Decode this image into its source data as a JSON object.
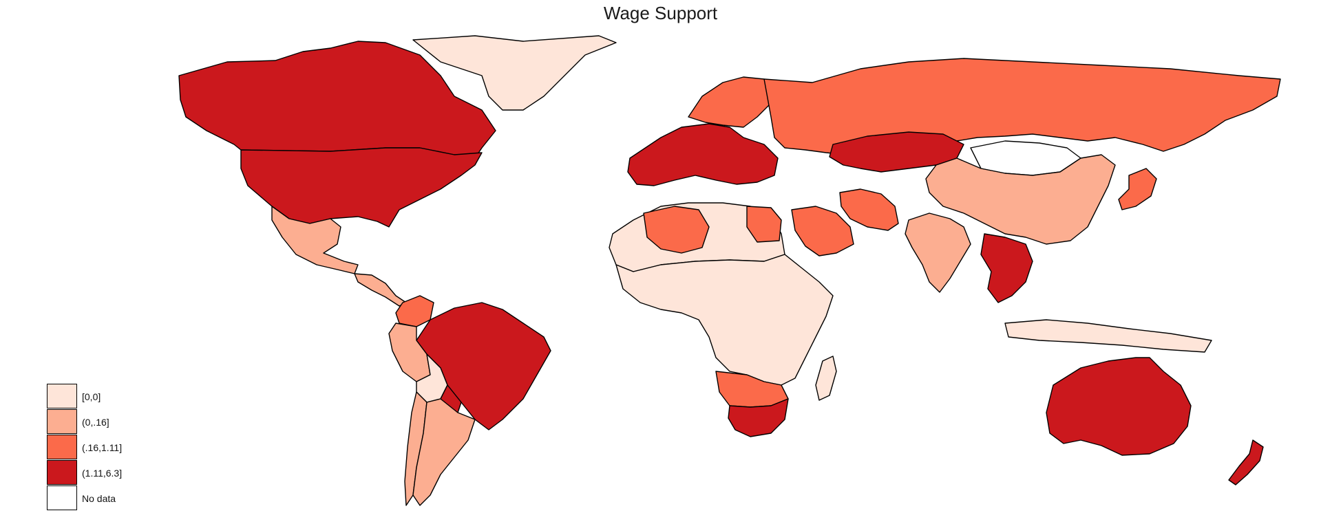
{
  "title": "Wage Support",
  "legend": {
    "items": [
      {
        "label": "[0,0]",
        "color": "#fee5d9"
      },
      {
        "label": "(0,.16]",
        "color": "#fcae91"
      },
      {
        "label": "(.16,1.11]",
        "color": "#fb6a4a"
      },
      {
        "label": "(1.11,6.3]",
        "color": "#cb181d"
      },
      {
        "label": "No data",
        "color": "#ffffff"
      }
    ]
  },
  "regions": [
    {
      "name": "greenland",
      "class": 0
    },
    {
      "name": "canada",
      "class": 3
    },
    {
      "name": "united-states",
      "class": 3
    },
    {
      "name": "mexico",
      "class": 1
    },
    {
      "name": "central-america",
      "class": 1
    },
    {
      "name": "colombia",
      "class": 2
    },
    {
      "name": "brazil",
      "class": 3
    },
    {
      "name": "peru",
      "class": 1
    },
    {
      "name": "bolivia",
      "class": 0
    },
    {
      "name": "paraguay",
      "class": 3
    },
    {
      "name": "chile",
      "class": 1
    },
    {
      "name": "argentina",
      "class": 1
    },
    {
      "name": "western-europe",
      "class": 3
    },
    {
      "name": "scandinavia",
      "class": 2
    },
    {
      "name": "russia",
      "class": 2
    },
    {
      "name": "kazakhstan",
      "class": 3
    },
    {
      "name": "mongolia",
      "class": 4
    },
    {
      "name": "china",
      "class": 1
    },
    {
      "name": "india",
      "class": 1
    },
    {
      "name": "iran",
      "class": 2
    },
    {
      "name": "saudi-arabia",
      "class": 2
    },
    {
      "name": "north-africa",
      "class": 0
    },
    {
      "name": "algeria",
      "class": 2
    },
    {
      "name": "egypt",
      "class": 2
    },
    {
      "name": "sub-saharan-africa",
      "class": 0
    },
    {
      "name": "southern-africa",
      "class": 2
    },
    {
      "name": "south-africa",
      "class": 3
    },
    {
      "name": "madagascar",
      "class": 0
    },
    {
      "name": "southeast-asia",
      "class": 3
    },
    {
      "name": "indonesia",
      "class": 0
    },
    {
      "name": "japan",
      "class": 2
    },
    {
      "name": "australia",
      "class": 3
    },
    {
      "name": "new-zealand",
      "class": 3
    }
  ]
}
